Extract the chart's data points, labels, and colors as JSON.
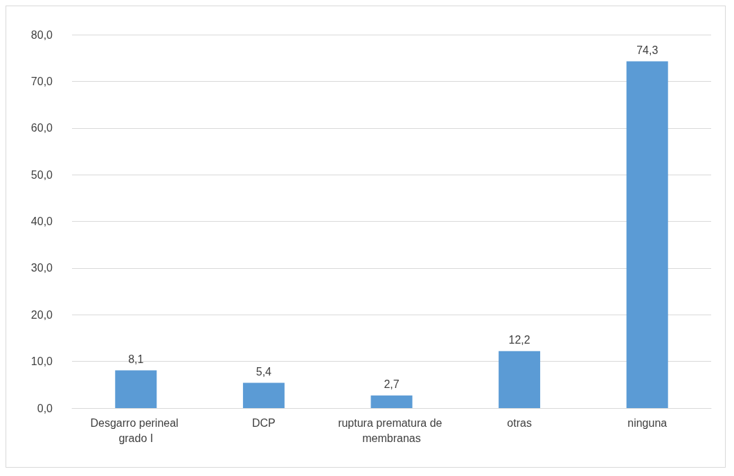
{
  "chart_data": {
    "type": "bar",
    "categories": [
      "Desgarro perineal grado I",
      "DCP",
      "ruptura prematura de membranas",
      "otras",
      "ninguna"
    ],
    "values": [
      8.1,
      5.4,
      2.7,
      12.2,
      74.3
    ],
    "value_labels": [
      "8,1",
      "5,4",
      "2,7",
      "12,2",
      "74,3"
    ],
    "color": "#5b9bd5",
    "ylim": [
      0,
      80
    ],
    "yticks": [
      {
        "value": 0,
        "label": "0,0"
      },
      {
        "value": 10,
        "label": "10,0"
      },
      {
        "value": 20,
        "label": "20,0"
      },
      {
        "value": 30,
        "label": "30,0"
      },
      {
        "value": 40,
        "label": "40,0"
      },
      {
        "value": 50,
        "label": "50,0"
      },
      {
        "value": 60,
        "label": "60,0"
      },
      {
        "value": 70,
        "label": "70,0"
      },
      {
        "value": 80,
        "label": "80,0"
      }
    ],
    "grid": "y"
  }
}
